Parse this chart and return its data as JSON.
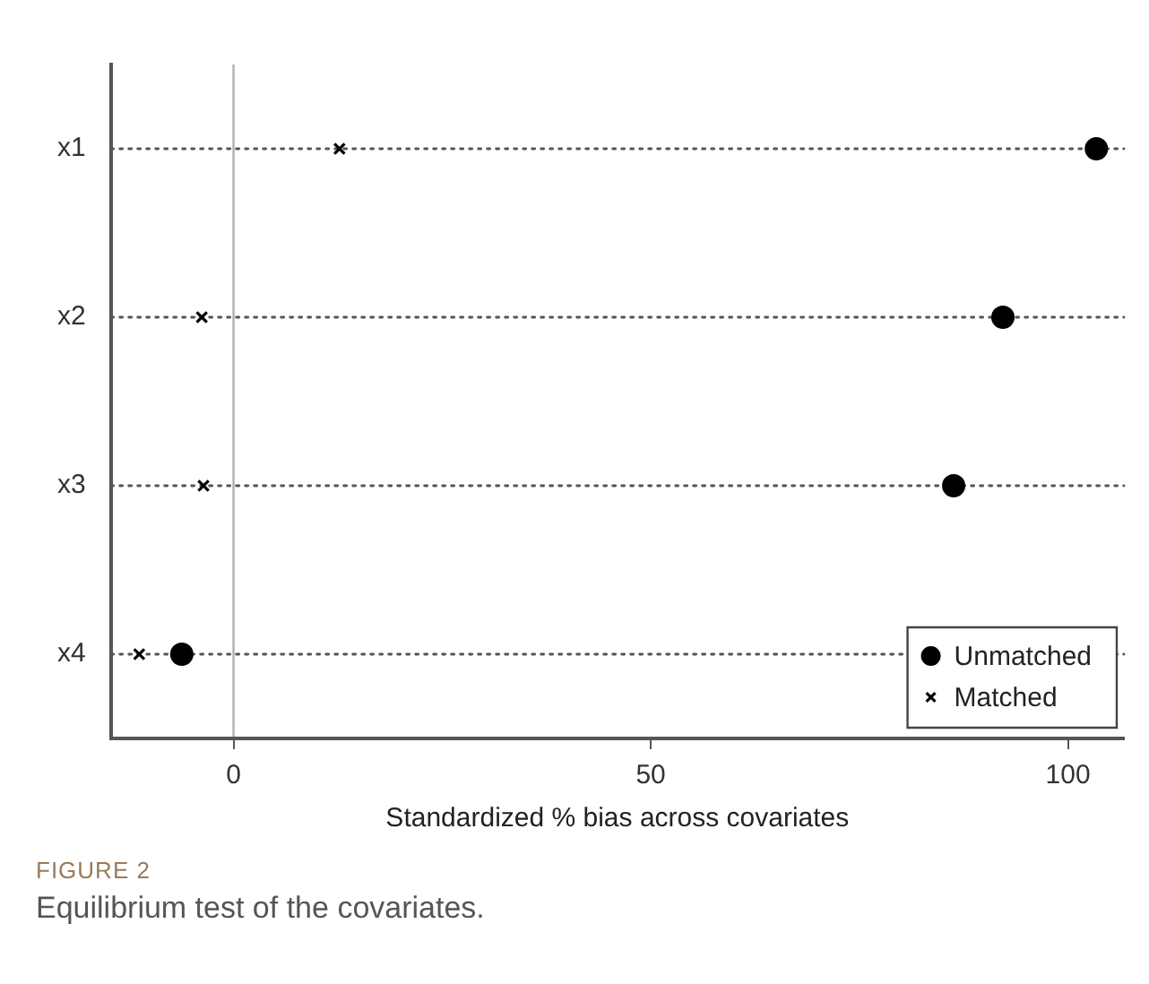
{
  "chart_data": {
    "type": "scatter",
    "categories": [
      "x1",
      "x2",
      "x3",
      "x4"
    ],
    "series": [
      {
        "name": "Unmatched",
        "color": "#000000",
        "marker": "circle",
        "values": [
          103.4,
          92.2,
          86.3,
          -6.2
        ]
      },
      {
        "name": "Matched",
        "color": "#000000",
        "marker": "cross",
        "values": [
          12.7,
          -3.8,
          -3.6,
          -11.3
        ]
      }
    ],
    "orientation": "horizontal",
    "xlabel": "Standardized % bias across covariates",
    "xlim": [
      -14.7,
      106.7
    ],
    "xticks": [
      0,
      50,
      100
    ],
    "grid": "y",
    "line_style": "dotted",
    "legend": "bottom right",
    "ref_lines": [
      {
        "axis": "x",
        "value": 0,
        "color": "#b0b0b0"
      }
    ],
    "annotations": [
      "FIGURE 2",
      "Equilibrium test of the covariates."
    ]
  }
}
